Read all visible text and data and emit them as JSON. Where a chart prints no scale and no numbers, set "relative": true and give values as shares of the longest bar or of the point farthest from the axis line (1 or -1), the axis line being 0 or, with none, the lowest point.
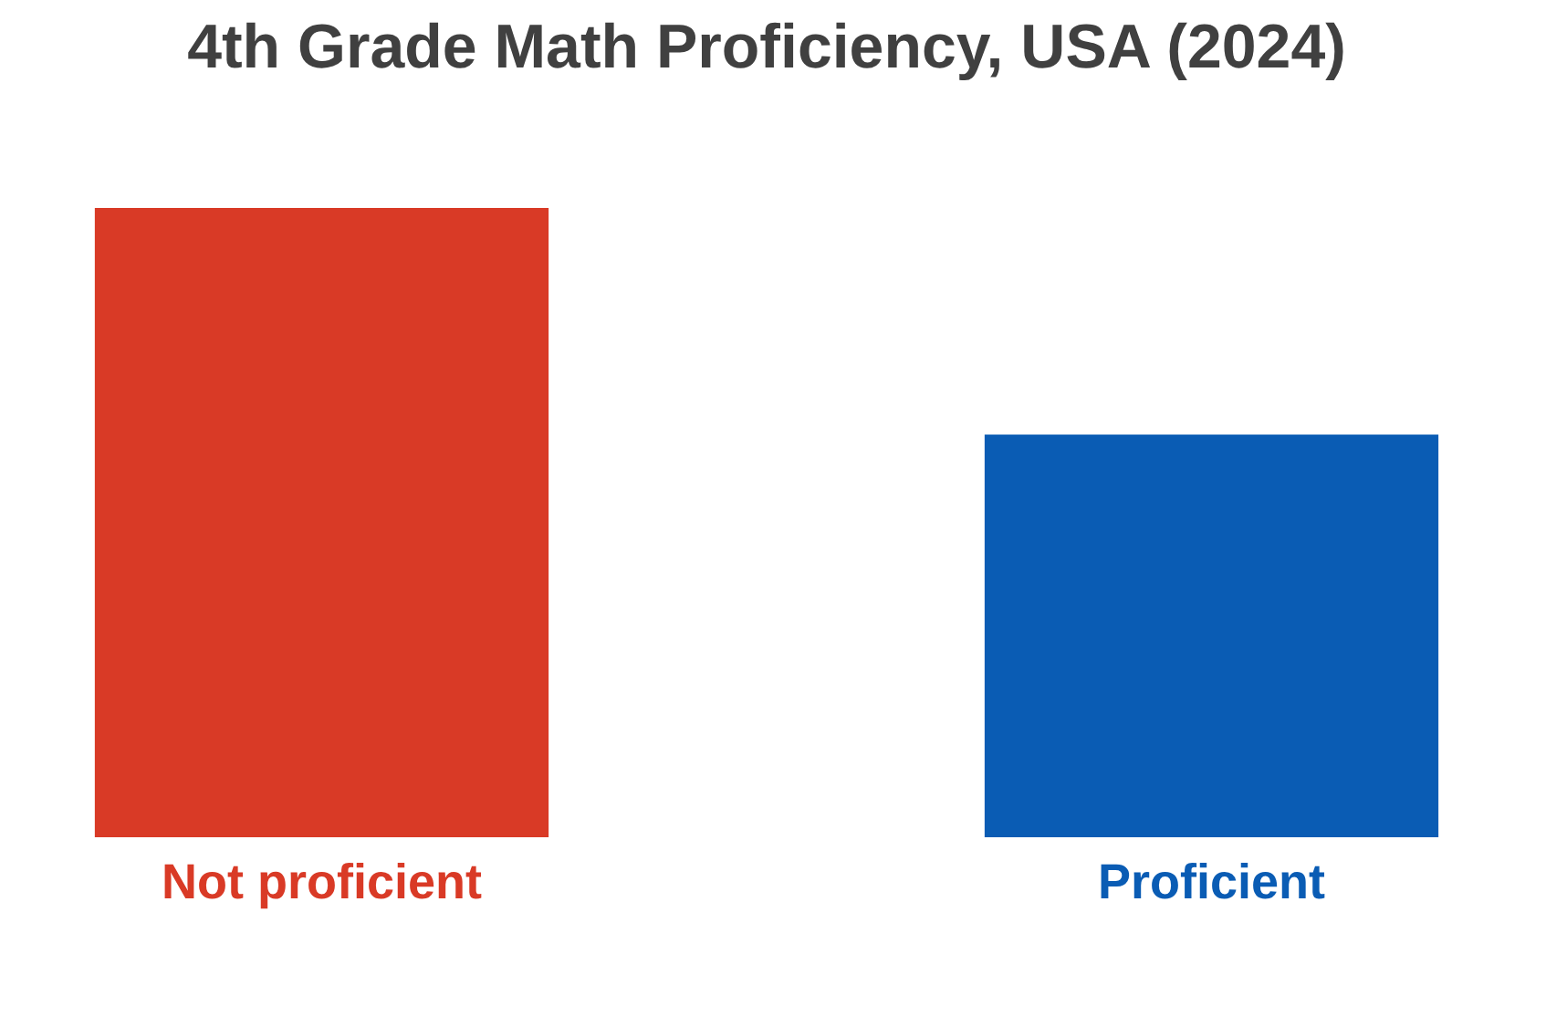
{
  "chart_data": {
    "type": "bar",
    "title": "4th Grade Math Proficiency, USA (2024)",
    "relative": true,
    "categories": [
      "Not proficient",
      "Proficient"
    ],
    "values": [
      1,
      0.64
    ],
    "colors": [
      "#d93a26",
      "#0a5cb4"
    ],
    "grid": false
  }
}
